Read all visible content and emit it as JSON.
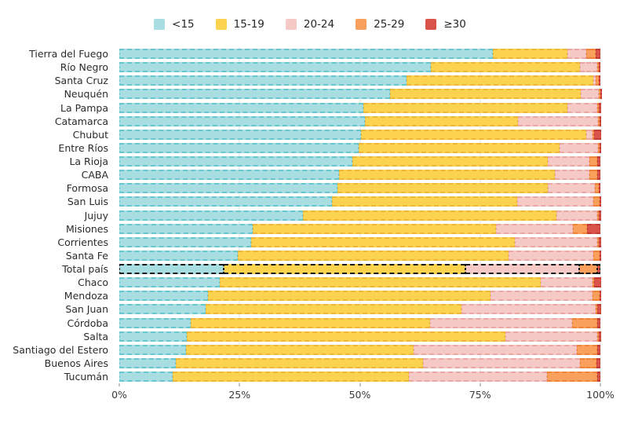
{
  "colors": {
    "background": "#ffffff",
    "gridline": "#e2e2e2",
    "highlight_border": "#1a1a1a",
    "axis_text": "#3a3a3a"
  },
  "chart_data": {
    "type": "bar",
    "orientation": "horizontal",
    "stacked": true,
    "unit": "%",
    "xlim": [
      0,
      100
    ],
    "x_tick_positions": [
      0,
      25,
      50,
      75,
      100
    ],
    "x_tick_labels": [
      "0%",
      "25%",
      "50%",
      "75%",
      "100%"
    ],
    "gridline_positions": [
      25,
      50,
      75,
      100
    ],
    "legend_position": "top",
    "legend_entries": [
      "<15",
      "15-19",
      "20-24",
      "25-29",
      "≥30"
    ],
    "highlight_category": "Total país",
    "categories": [
      "Tierra del Fuego",
      "Río Negro",
      "Santa Cruz",
      "Neuquén",
      "La Pampa",
      "Catamarca",
      "Chubut",
      "Entre Ríos",
      "La Rioja",
      "CABA",
      "Formosa",
      "San Luis",
      "Jujuy",
      "Misiones",
      "Corrientes",
      "Santa Fe",
      "Total país",
      "Chaco",
      "Mendoza",
      "San Juan",
      "Córdoba",
      "Salta",
      "Santiago del Estero",
      "Buenos Aires",
      "Tucumán"
    ],
    "series": [
      {
        "name": "<15",
        "fill": "#A8DDE2",
        "stroke": "#67C6CE",
        "values": [
          77.7,
          64.8,
          59.7,
          56.3,
          50.7,
          51.0,
          50.2,
          49.7,
          48.5,
          45.6,
          45.4,
          44.2,
          38.2,
          27.8,
          27.4,
          24.6,
          21.7,
          20.9,
          18.4,
          17.9,
          14.8,
          14.0,
          13.8,
          11.8,
          11.1
        ]
      },
      {
        "name": "15-19",
        "fill": "#FCD34F",
        "stroke": "#EFB63C",
        "values": [
          15.5,
          31.0,
          38.8,
          39.6,
          42.5,
          31.9,
          46.8,
          41.8,
          40.6,
          44.9,
          43.7,
          38.5,
          52.7,
          50.5,
          54.8,
          56.3,
          50.3,
          66.7,
          58.8,
          53.2,
          49.8,
          66.3,
          47.4,
          51.4,
          49.1
        ]
      },
      {
        "name": "20-24",
        "fill": "#F4C9C6",
        "stroke": "#E9A8A4",
        "values": [
          3.8,
          3.6,
          0.6,
          3.7,
          6.2,
          16.6,
          1.4,
          8.0,
          8.6,
          7.3,
          9.8,
          15.9,
          8.5,
          16.0,
          17.1,
          17.6,
          23.6,
          10.8,
          21.2,
          28.0,
          29.6,
          19.0,
          33.9,
          32.6,
          28.7
        ]
      },
      {
        "name": "25-29",
        "fill": "#F8A05C",
        "stroke": "#EE8439",
        "values": [
          2.0,
          0.3,
          0.5,
          0.2,
          0.2,
          0.2,
          0.2,
          0.2,
          1.7,
          1.5,
          0.8,
          1.2,
          0.2,
          3.0,
          0.1,
          1.4,
          3.7,
          0.2,
          1.4,
          0.1,
          5.2,
          0.1,
          4.2,
          3.4,
          10.4
        ]
      },
      {
        "name": "≥30",
        "fill": "#D9534B",
        "stroke": "#C23B34",
        "values": [
          1.0,
          0.3,
          0.4,
          0.2,
          0.4,
          0.3,
          1.4,
          0.3,
          0.6,
          0.7,
          0.3,
          0.2,
          0.4,
          2.7,
          0.6,
          0.1,
          0.7,
          1.4,
          0.2,
          0.8,
          0.6,
          0.6,
          0.7,
          0.8,
          0.7
        ]
      }
    ]
  }
}
